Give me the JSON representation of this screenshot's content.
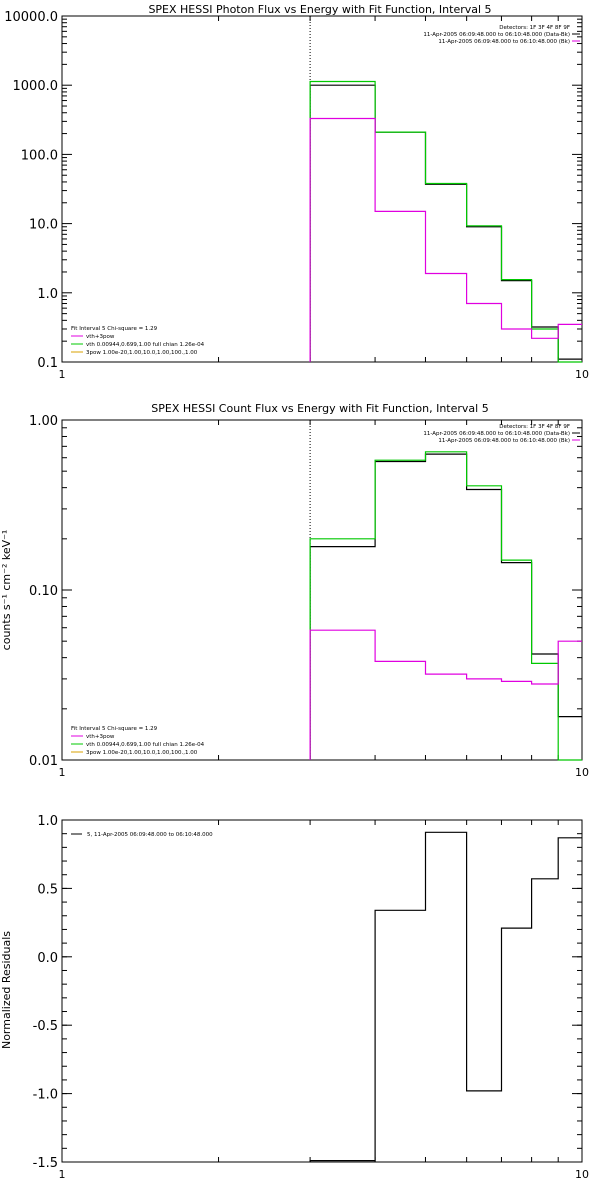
{
  "chart_data": [
    {
      "type": "line",
      "title": "SPEX HESSI Photon Flux vs Energy with Fit Function, Interval 5",
      "xscale": "log",
      "yscale": "log",
      "xlim": [
        1,
        10
      ],
      "ylim": [
        0.1,
        10000
      ],
      "x_ticks": [
        "1",
        "10"
      ],
      "y_ticks": [
        "0.1",
        "1.0",
        "10.0",
        "100.0",
        "1000.0",
        "10000.0"
      ],
      "ylabel": "",
      "xlabel": "",
      "vline_x": 3,
      "info": [
        "Detectors: 1F 3F 4F 8F 9F",
        "11-Apr-2005 06:09:48.000 to 06:10:48.000 (Data-Bk)",
        "11-Apr-2005 06:09:48.000 to 06:10:48.000 (Bk)"
      ],
      "fit_info": [
        "Fit Interval 5   Chi-square = 1.29",
        "vth+3pow",
        "vth 0.00944,0.699,1.00  full chian 1.26e-04",
        "3pow 1.00e-20,1.00,10.0,1.00,100.,1.00"
      ],
      "series": [
        {
          "name": "Data-Bk",
          "color": "#000000",
          "edges": [
            3,
            4,
            5,
            6,
            7,
            8,
            9,
            10
          ],
          "values": [
            1000,
            210,
            37,
            9,
            1.5,
            0.32,
            0.11
          ]
        },
        {
          "name": "vth+3pow",
          "color": "#00c800",
          "edges": [
            3,
            4,
            5,
            6,
            7,
            8,
            9,
            10
          ],
          "values": [
            1130,
            210,
            38,
            9.3,
            1.55,
            0.3,
            0.0
          ]
        },
        {
          "name": "Bk",
          "color": "#e000e0",
          "edges": [
            3,
            4,
            5,
            6,
            7,
            8,
            9,
            10
          ],
          "values": [
            330,
            15,
            1.9,
            0.7,
            0.3,
            0.22,
            0.35
          ]
        }
      ]
    },
    {
      "type": "line",
      "title": "SPEX HESSI Count Flux vs Energy with Fit Function, Interval 5",
      "xscale": "log",
      "yscale": "log",
      "xlim": [
        1,
        10
      ],
      "ylim": [
        0.01,
        1.0
      ],
      "x_ticks": [
        "1",
        "10"
      ],
      "y_ticks": [
        "0.01",
        "0.10",
        "1.00"
      ],
      "ylabel": "counts s⁻¹ cm⁻² keV⁻¹",
      "xlabel": "",
      "vline_x": 3,
      "info": [
        "Detectors: 1F 3F 4F 8F 9F",
        "11-Apr-2005 06:09:48.000 to 06:10:48.000 (Data-Bk)",
        "11-Apr-2005 06:09:48.000 to 06:10:48.000 (Bk)"
      ],
      "fit_info": [
        "Fit Interval 5   Chi-square = 1.29",
        "vth+3pow",
        "vth 0.00944,0.699,1.00  full chian 1.26e-04",
        "3pow 1.00e-20,1.00,10.0,1.00,100.,1.00"
      ],
      "series": [
        {
          "name": "Data-Bk",
          "color": "#000000",
          "edges": [
            3,
            4,
            5,
            6,
            7,
            8,
            9,
            10
          ],
          "values": [
            0.18,
            0.57,
            0.63,
            0.39,
            0.145,
            0.042,
            0.018
          ]
        },
        {
          "name": "vth+3pow",
          "color": "#00c800",
          "edges": [
            3,
            4,
            5,
            6,
            7,
            8,
            9,
            10
          ],
          "values": [
            0.2,
            0.58,
            0.65,
            0.41,
            0.15,
            0.037,
            0.0
          ]
        },
        {
          "name": "Bk",
          "color": "#e000e0",
          "edges": [
            3,
            4,
            5,
            6,
            7,
            8,
            9,
            10
          ],
          "values": [
            0.058,
            0.038,
            0.032,
            0.03,
            0.029,
            0.028,
            0.05
          ]
        }
      ]
    },
    {
      "type": "line",
      "title": "",
      "xscale": "log",
      "yscale": "linear",
      "xlim": [
        1,
        10
      ],
      "ylim": [
        -1.5,
        1.0
      ],
      "x_ticks": [
        "1",
        "10"
      ],
      "y_ticks": [
        "-1.5",
        "-1.0",
        "-0.5",
        "0.0",
        "0.5",
        "1.0"
      ],
      "ylabel": "Normalized Residuals",
      "xlabel": "",
      "legend": "5, 11-Apr-2005 06:09:48.000 to 06:10:48.000",
      "series": [
        {
          "name": "5, 11-Apr-2005 06:09:48.000 to 06:10:48.000",
          "color": "#000000",
          "edges": [
            3,
            4,
            5,
            6,
            7,
            8,
            9,
            10
          ],
          "values": [
            -1.49,
            0.34,
            0.91,
            -0.98,
            0.21,
            0.57,
            0.87
          ]
        }
      ]
    }
  ]
}
